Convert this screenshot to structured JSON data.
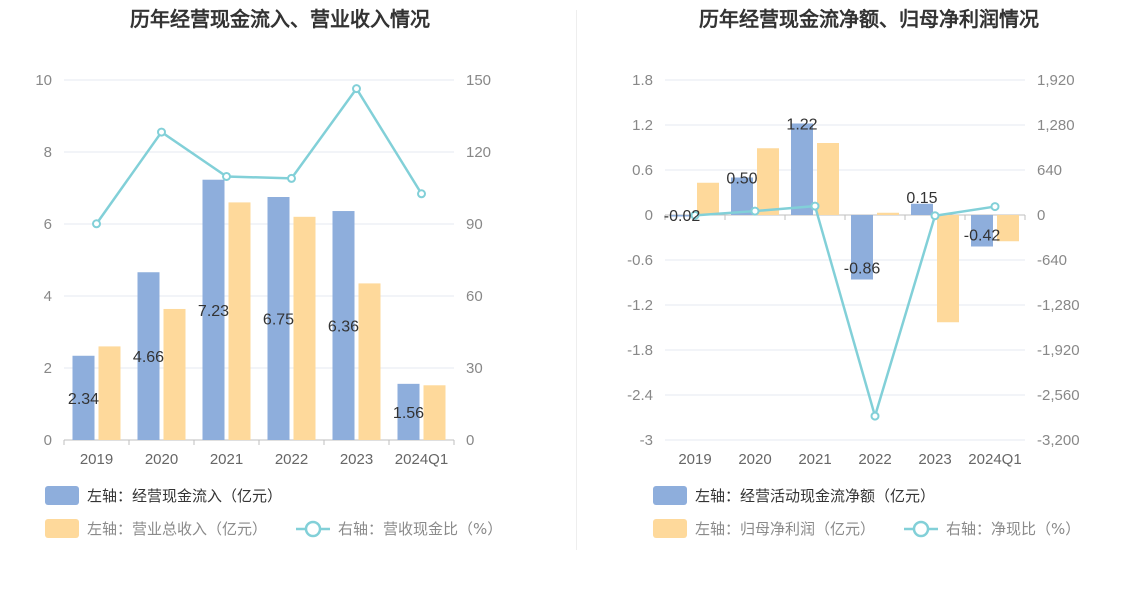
{
  "colors": {
    "bar_primary": "#8eaedc",
    "bar_secondary": "#fed99b",
    "line": "#82d0d8",
    "grid": "#e6e8f0",
    "axis": "#bfbfbf"
  },
  "chart_data": [
    {
      "type": "bar",
      "title": "历年经营现金流入、营业收入情况",
      "categories": [
        "2019",
        "2020",
        "2021",
        "2022",
        "2023",
        "2024Q1"
      ],
      "y_left": {
        "ticks": [
          "0",
          "2",
          "4",
          "6",
          "8",
          "10"
        ],
        "ylim": [
          0,
          10
        ]
      },
      "y_right": {
        "ticks": [
          "0",
          "30",
          "60",
          "90",
          "120",
          "150"
        ],
        "ylim": [
          0,
          150
        ]
      },
      "series": [
        {
          "name": "左轴：经营现金流入（亿元）",
          "kind": "bar",
          "axis": "left",
          "values": [
            2.34,
            4.66,
            7.23,
            6.75,
            6.36,
            1.56
          ],
          "labels": [
            "2.34",
            "4.66",
            "7.23",
            "6.75",
            "6.36",
            "1.56"
          ]
        },
        {
          "name": "左轴：营业总收入（亿元）",
          "kind": "bar",
          "axis": "left",
          "values": [
            2.6,
            3.64,
            6.6,
            6.2,
            4.35,
            1.52
          ]
        },
        {
          "name": "右轴：营收现金比（%）",
          "kind": "line",
          "axis": "right",
          "values": [
            90.1,
            128.3,
            109.8,
            109.0,
            146.4,
            102.6
          ]
        }
      ],
      "legend_placement": "bottom-left",
      "grid": true
    },
    {
      "type": "bar",
      "title": "历年经营现金流净额、归母净利润情况",
      "categories": [
        "2019",
        "2020",
        "2021",
        "2022",
        "2023",
        "2024Q1"
      ],
      "y_left": {
        "ticks": [
          "-3",
          "-2.4",
          "-1.8",
          "-1.2",
          "-0.6",
          "0",
          "0.6",
          "1.2",
          "1.8"
        ],
        "ylim": [
          -3,
          1.8
        ]
      },
      "y_right": {
        "ticks": [
          "-3,200",
          "-2,560",
          "-1,920",
          "-1,280",
          "-640",
          "0",
          "640",
          "1,280",
          "1,920"
        ],
        "ylim": [
          -3200,
          1920
        ]
      },
      "series": [
        {
          "name": "左轴：经营活动现金流净额（亿元）",
          "kind": "bar",
          "axis": "left",
          "values": [
            -0.02,
            0.5,
            1.22,
            -0.86,
            0.15,
            -0.42
          ],
          "labels": [
            "-0.02",
            "0.50",
            "1.22",
            "-0.86",
            "0.15",
            "-0.42"
          ]
        },
        {
          "name": "左轴：归母净利润（亿元）",
          "kind": "bar",
          "axis": "left",
          "values": [
            0.43,
            0.89,
            0.96,
            0.03,
            -1.43,
            -0.35
          ]
        },
        {
          "name": "右轴：净现比（%）",
          "kind": "line",
          "axis": "right",
          "values": [
            -5,
            56,
            127,
            -2860,
            -10,
            120
          ]
        }
      ],
      "legend_placement": "bottom-left",
      "grid": true
    }
  ]
}
